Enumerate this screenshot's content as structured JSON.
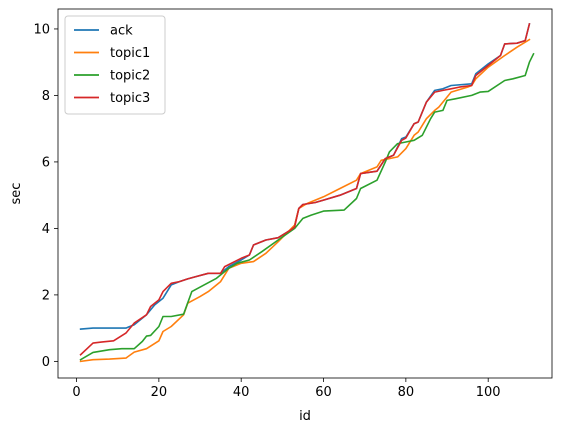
{
  "chart_data": {
    "type": "line",
    "title": "",
    "xlabel": "id",
    "ylabel": "sec",
    "xlim": [
      -4.5,
      115.5
    ],
    "ylim": [
      -0.5,
      10.6
    ],
    "x_ticks": [
      0,
      20,
      40,
      60,
      80,
      100
    ],
    "y_ticks": [
      0,
      2,
      4,
      6,
      8,
      10
    ],
    "grid": false,
    "legend_position": "top-left",
    "series": [
      {
        "name": "ack",
        "color": "#1f77b4",
        "points": [
          [
            1,
            0.97
          ],
          [
            4,
            1.0
          ],
          [
            8,
            1.0
          ],
          [
            12,
            1.0
          ],
          [
            14,
            1.1
          ],
          [
            17,
            1.4
          ],
          [
            19,
            1.7
          ],
          [
            21,
            1.9
          ],
          [
            23,
            2.3
          ],
          [
            25,
            2.4
          ],
          [
            27,
            2.48
          ],
          [
            29,
            2.55
          ],
          [
            32,
            2.65
          ],
          [
            35,
            2.65
          ],
          [
            37,
            2.85
          ],
          [
            40,
            3.05
          ],
          [
            42,
            3.2
          ],
          [
            43,
            3.5
          ],
          [
            46,
            3.65
          ],
          [
            49,
            3.72
          ],
          [
            52,
            3.95
          ],
          [
            53,
            4.1
          ],
          [
            54,
            4.6
          ],
          [
            55,
            4.72
          ],
          [
            58,
            4.78
          ],
          [
            60,
            4.85
          ],
          [
            64,
            5.0
          ],
          [
            68,
            5.2
          ],
          [
            69,
            5.65
          ],
          [
            73,
            5.72
          ],
          [
            75,
            6.1
          ],
          [
            77,
            6.2
          ],
          [
            79,
            6.7
          ],
          [
            80,
            6.75
          ],
          [
            82,
            7.15
          ],
          [
            83,
            7.2
          ],
          [
            85,
            7.8
          ],
          [
            87,
            8.15
          ],
          [
            89,
            8.2
          ],
          [
            91,
            8.3
          ],
          [
            96,
            8.35
          ],
          [
            97,
            8.65
          ],
          [
            100,
            8.95
          ],
          [
            103,
            9.2
          ],
          [
            104,
            9.55
          ],
          [
            107,
            9.57
          ],
          [
            109,
            9.65
          ],
          [
            110,
            10.15
          ]
        ]
      },
      {
        "name": "topic1",
        "color": "#ff7f0e",
        "points": [
          [
            1,
            0.0
          ],
          [
            4,
            0.05
          ],
          [
            8,
            0.07
          ],
          [
            12,
            0.1
          ],
          [
            14,
            0.28
          ],
          [
            17,
            0.38
          ],
          [
            20,
            0.62
          ],
          [
            21,
            0.9
          ],
          [
            23,
            1.05
          ],
          [
            26,
            1.4
          ],
          [
            27,
            1.75
          ],
          [
            30,
            1.95
          ],
          [
            32,
            2.1
          ],
          [
            35,
            2.4
          ],
          [
            37,
            2.8
          ],
          [
            40,
            2.95
          ],
          [
            43,
            3.0
          ],
          [
            46,
            3.25
          ],
          [
            49,
            3.6
          ],
          [
            53,
            4.1
          ],
          [
            54,
            4.6
          ],
          [
            56,
            4.75
          ],
          [
            60,
            4.95
          ],
          [
            64,
            5.2
          ],
          [
            68,
            5.45
          ],
          [
            69,
            5.65
          ],
          [
            73,
            5.85
          ],
          [
            74,
            6.05
          ],
          [
            76,
            6.1
          ],
          [
            78,
            6.15
          ],
          [
            80,
            6.4
          ],
          [
            82,
            6.8
          ],
          [
            83,
            6.9
          ],
          [
            85,
            7.3
          ],
          [
            87,
            7.55
          ],
          [
            88,
            7.65
          ],
          [
            91,
            8.1
          ],
          [
            95,
            8.25
          ],
          [
            96,
            8.3
          ],
          [
            97,
            8.5
          ],
          [
            100,
            8.85
          ],
          [
            104,
            9.2
          ],
          [
            107,
            9.45
          ],
          [
            110,
            9.68
          ]
        ]
      },
      {
        "name": "topic2",
        "color": "#2ca02c",
        "points": [
          [
            1,
            0.05
          ],
          [
            4,
            0.27
          ],
          [
            8,
            0.35
          ],
          [
            11,
            0.38
          ],
          [
            14,
            0.38
          ],
          [
            16,
            0.6
          ],
          [
            17,
            0.76
          ],
          [
            18,
            0.78
          ],
          [
            20,
            1.05
          ],
          [
            21,
            1.35
          ],
          [
            23,
            1.35
          ],
          [
            26,
            1.42
          ],
          [
            28,
            2.1
          ],
          [
            31,
            2.3
          ],
          [
            34,
            2.5
          ],
          [
            37,
            2.8
          ],
          [
            39,
            2.95
          ],
          [
            42,
            3.05
          ],
          [
            45,
            3.3
          ],
          [
            49,
            3.65
          ],
          [
            53,
            4.0
          ],
          [
            55,
            4.3
          ],
          [
            57,
            4.4
          ],
          [
            60,
            4.52
          ],
          [
            65,
            4.55
          ],
          [
            68,
            4.9
          ],
          [
            69,
            5.2
          ],
          [
            73,
            5.45
          ],
          [
            75,
            6.0
          ],
          [
            76,
            6.3
          ],
          [
            78,
            6.55
          ],
          [
            80,
            6.6
          ],
          [
            82,
            6.65
          ],
          [
            84,
            6.8
          ],
          [
            86,
            7.3
          ],
          [
            87,
            7.5
          ],
          [
            89,
            7.55
          ],
          [
            90,
            7.85
          ],
          [
            92,
            7.9
          ],
          [
            96,
            8.0
          ],
          [
            98,
            8.1
          ],
          [
            100,
            8.12
          ],
          [
            104,
            8.45
          ],
          [
            106,
            8.5
          ],
          [
            109,
            8.6
          ],
          [
            110,
            9.0
          ],
          [
            111,
            9.25
          ]
        ]
      },
      {
        "name": "topic3",
        "color": "#d62728",
        "points": [
          [
            1,
            0.2
          ],
          [
            4,
            0.55
          ],
          [
            6,
            0.58
          ],
          [
            9,
            0.62
          ],
          [
            12,
            0.85
          ],
          [
            14,
            1.15
          ],
          [
            17,
            1.4
          ],
          [
            18,
            1.65
          ],
          [
            20,
            1.85
          ],
          [
            21,
            2.1
          ],
          [
            23,
            2.35
          ],
          [
            25,
            2.4
          ],
          [
            27,
            2.48
          ],
          [
            29,
            2.55
          ],
          [
            32,
            2.65
          ],
          [
            35,
            2.65
          ],
          [
            36,
            2.85
          ],
          [
            40,
            3.1
          ],
          [
            42,
            3.2
          ],
          [
            43,
            3.5
          ],
          [
            46,
            3.65
          ],
          [
            49,
            3.72
          ],
          [
            52,
            3.95
          ],
          [
            53,
            4.05
          ],
          [
            54,
            4.6
          ],
          [
            55,
            4.72
          ],
          [
            58,
            4.78
          ],
          [
            60,
            4.85
          ],
          [
            64,
            5.0
          ],
          [
            68,
            5.2
          ],
          [
            69,
            5.65
          ],
          [
            73,
            5.72
          ],
          [
            75,
            6.1
          ],
          [
            77,
            6.2
          ],
          [
            79,
            6.65
          ],
          [
            80,
            6.72
          ],
          [
            82,
            7.15
          ],
          [
            83,
            7.2
          ],
          [
            85,
            7.8
          ],
          [
            87,
            8.1
          ],
          [
            89,
            8.15
          ],
          [
            91,
            8.2
          ],
          [
            93,
            8.25
          ],
          [
            96,
            8.3
          ],
          [
            97,
            8.6
          ],
          [
            100,
            8.9
          ],
          [
            103,
            9.2
          ],
          [
            104,
            9.55
          ],
          [
            107,
            9.57
          ],
          [
            109,
            9.65
          ],
          [
            110,
            10.15
          ]
        ]
      }
    ]
  }
}
